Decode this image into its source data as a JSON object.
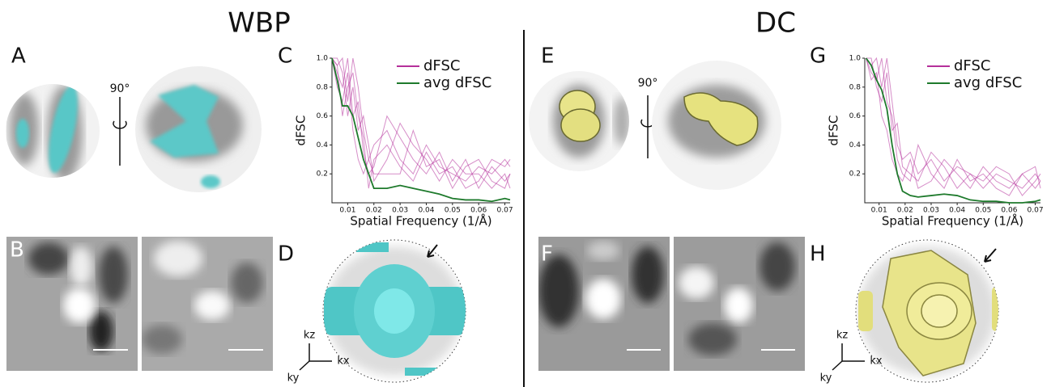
{
  "headings": [
    "WBP",
    "DC"
  ],
  "panels": [
    "A",
    "B",
    "C",
    "D",
    "E",
    "F",
    "G",
    "H"
  ],
  "rotation_labels": [
    "90°",
    "90°"
  ],
  "axis_glyphs": {
    "wbp": [
      "kz",
      "kx",
      "ky"
    ],
    "dc": [
      "kz",
      "kx",
      "ky"
    ]
  },
  "chart_data": [
    {
      "type": "line",
      "xlabel": "Spatial Frequency (1/Å)",
      "ylabel": "dFSC",
      "x": [
        0.004,
        0.006,
        0.008,
        0.01,
        0.012,
        0.014,
        0.016,
        0.018,
        0.02,
        0.025,
        0.03,
        0.035,
        0.04,
        0.045,
        0.05,
        0.055,
        0.06,
        0.065,
        0.07,
        0.072
      ],
      "xlim": [
        0.004,
        0.072
      ],
      "xticks": [
        0.01,
        0.02,
        0.03,
        0.04,
        0.05,
        0.06,
        0.07
      ],
      "ylim": [
        0,
        1
      ],
      "yticks": [
        0.2,
        0.4,
        0.6,
        0.8,
        {
          "value": 1,
          "label": "1.0"
        }
      ],
      "legend": "upper right",
      "series": [
        {
          "name": "dFSC",
          "color": "#b5309a",
          "values": [
            1,
            0.95,
            1,
            0.7,
            1,
            0.8,
            0.5,
            0.3,
            0.4,
            0.5,
            0.3,
            0.2,
            0.4,
            0.25,
            0.2,
            0.15,
            0.25,
            0.2,
            0.3,
            0.25
          ]
        },
        {
          "color": "#b5309a",
          "values": [
            1,
            0.9,
            0.8,
            1,
            0.6,
            0.7,
            0.35,
            0.2,
            0.25,
            0.6,
            0.45,
            0.3,
            0.2,
            0.35,
            0.15,
            0.3,
            0.1,
            0.25,
            0.15,
            0.2
          ]
        },
        {
          "color": "#b5309a",
          "values": [
            1,
            1,
            0.9,
            0.6,
            0.8,
            0.5,
            0.6,
            0.4,
            0.15,
            0.3,
            0.55,
            0.4,
            0.3,
            0.15,
            0.3,
            0.2,
            0.2,
            0.1,
            0.2,
            0.1
          ]
        },
        {
          "color": "#b5309a",
          "values": [
            1,
            0.8,
            0.7,
            0.9,
            0.5,
            0.3,
            0.2,
            0.3,
            0.2,
            0.2,
            0.2,
            0.5,
            0.25,
            0.3,
            0.1,
            0.25,
            0.3,
            0.15,
            0.1,
            0.2
          ]
        },
        {
          "color": "#b5309a",
          "values": [
            1,
            0.95,
            0.6,
            0.8,
            0.9,
            0.6,
            0.45,
            0.1,
            0.3,
            0.4,
            0.25,
            0.15,
            0.35,
            0.2,
            0.25,
            0.1,
            0.15,
            0.3,
            0.25,
            0.3
          ]
        },
        {
          "name": "avg dFSC",
          "color": "#1e7a2c",
          "values": [
            1,
            0.85,
            0.67,
            0.67,
            0.6,
            0.45,
            0.3,
            0.2,
            0.1,
            0.1,
            0.12,
            0.1,
            0.08,
            0.06,
            0.03,
            0.02,
            0.02,
            0.01,
            0.03,
            0.02
          ]
        }
      ]
    },
    {
      "type": "line",
      "xlabel": "Spatial Frequency (1/Å)",
      "ylabel": "dFSC",
      "x": [
        0.005,
        0.007,
        0.009,
        0.011,
        0.013,
        0.015,
        0.017,
        0.019,
        0.022,
        0.025,
        0.03,
        0.035,
        0.04,
        0.045,
        0.05,
        0.055,
        0.06,
        0.065,
        0.07,
        0.072
      ],
      "xlim": [
        0.0045,
        0.072
      ],
      "xticks": [
        0.01,
        0.02,
        0.03,
        0.04,
        0.05,
        0.06,
        0.07
      ],
      "ylim": [
        0,
        1
      ],
      "yticks": [
        0.2,
        0.4,
        0.6,
        0.8,
        {
          "value": 1,
          "label": "1.0"
        }
      ],
      "legend": "upper right",
      "series": [
        {
          "name": "dFSC",
          "color": "#b5309a",
          "values": [
            1,
            0.95,
            1,
            0.8,
            1,
            0.7,
            0.4,
            0.3,
            0.35,
            0.2,
            0.3,
            0.15,
            0.25,
            0.2,
            0.1,
            0.2,
            0.15,
            0.1,
            0.2,
            0.15
          ]
        },
        {
          "color": "#b5309a",
          "values": [
            1,
            0.9,
            0.85,
            1,
            0.7,
            0.6,
            0.3,
            0.2,
            0.15,
            0.4,
            0.2,
            0.1,
            0.3,
            0.15,
            0.2,
            0.1,
            0.05,
            0.2,
            0.1,
            0.15
          ]
        },
        {
          "color": "#b5309a",
          "values": [
            1,
            1,
            0.8,
            0.7,
            0.9,
            0.5,
            0.55,
            0.25,
            0.2,
            0.15,
            0.35,
            0.25,
            0.1,
            0.2,
            0.15,
            0.25,
            0.2,
            0.05,
            0.15,
            0.2
          ]
        },
        {
          "color": "#b5309a",
          "values": [
            1,
            0.85,
            0.9,
            0.6,
            0.5,
            0.3,
            0.2,
            0.15,
            0.3,
            0.1,
            0.15,
            0.3,
            0.2,
            0.1,
            0.25,
            0.15,
            0.1,
            0.2,
            0.25,
            0.1
          ]
        },
        {
          "name": "avg dFSC",
          "color": "#1e7a2c",
          "values": [
            1,
            0.95,
            0.85,
            0.78,
            0.65,
            0.4,
            0.2,
            0.08,
            0.05,
            0.04,
            0.05,
            0.06,
            0.05,
            0.02,
            0.01,
            0.01,
            0,
            0,
            0.01,
            0.02
          ]
        }
      ]
    }
  ]
}
